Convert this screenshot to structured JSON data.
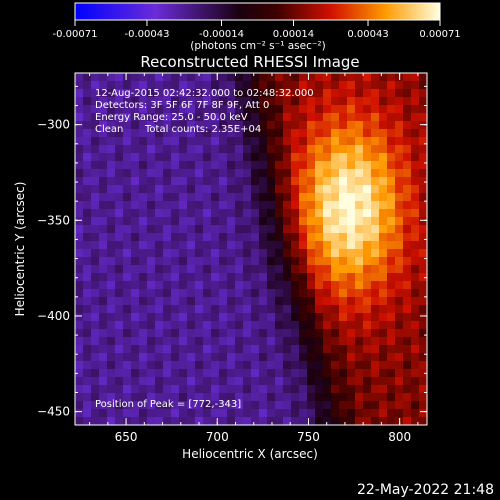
{
  "chart_data": {
    "type": "heatmap",
    "title": "Reconstructed RHESSI Image",
    "xlabel": "Heliocentric X (arcsec)",
    "ylabel": "Heliocentric Y (arcsec)",
    "xlim": [
      622,
      815
    ],
    "ylim": [
      -457,
      -273
    ],
    "x_ticks": [
      650,
      700,
      750,
      800
    ],
    "y_ticks": [
      -300,
      -350,
      -400,
      -450
    ],
    "colorbar": {
      "min": -0.00071,
      "max": 0.00071,
      "ticks": [
        {
          "value": -0.00071,
          "label": "-0.00071"
        },
        {
          "value": -0.00043,
          "label": "-0.00043"
        },
        {
          "value": -0.00014,
          "label": "-0.00014"
        },
        {
          "value": 0.00014,
          "label": "0.00014"
        },
        {
          "value": 0.00043,
          "label": "0.00043"
        },
        {
          "value": 0.00071,
          "label": "0.00071"
        }
      ],
      "unit_label": "(photons cm⁻² s⁻¹ asec⁻²)",
      "colors": [
        "#0000ff",
        "#7a2bd0",
        "#000000",
        "#c00000",
        "#ff7a00",
        "#ffff80",
        "#ffffff"
      ]
    },
    "annotations": {
      "time_range": "12-Aug-2015 02:42:32.000 to 02:48:32.000",
      "detectors": "Detectors: 3F 5F 6F 7F 8F 9F, Att 0",
      "energy_range": "Energy Range: 25.0 - 50.0 keV",
      "clean_label": "Clean",
      "total_counts": "Total counts: 2.35E+04",
      "peak": "Position of Peak = [772,-343]"
    },
    "peak_position": [
      772,
      -343
    ],
    "grid": false
  },
  "footer": {
    "timestamp": "22-May-2022 21:48"
  }
}
